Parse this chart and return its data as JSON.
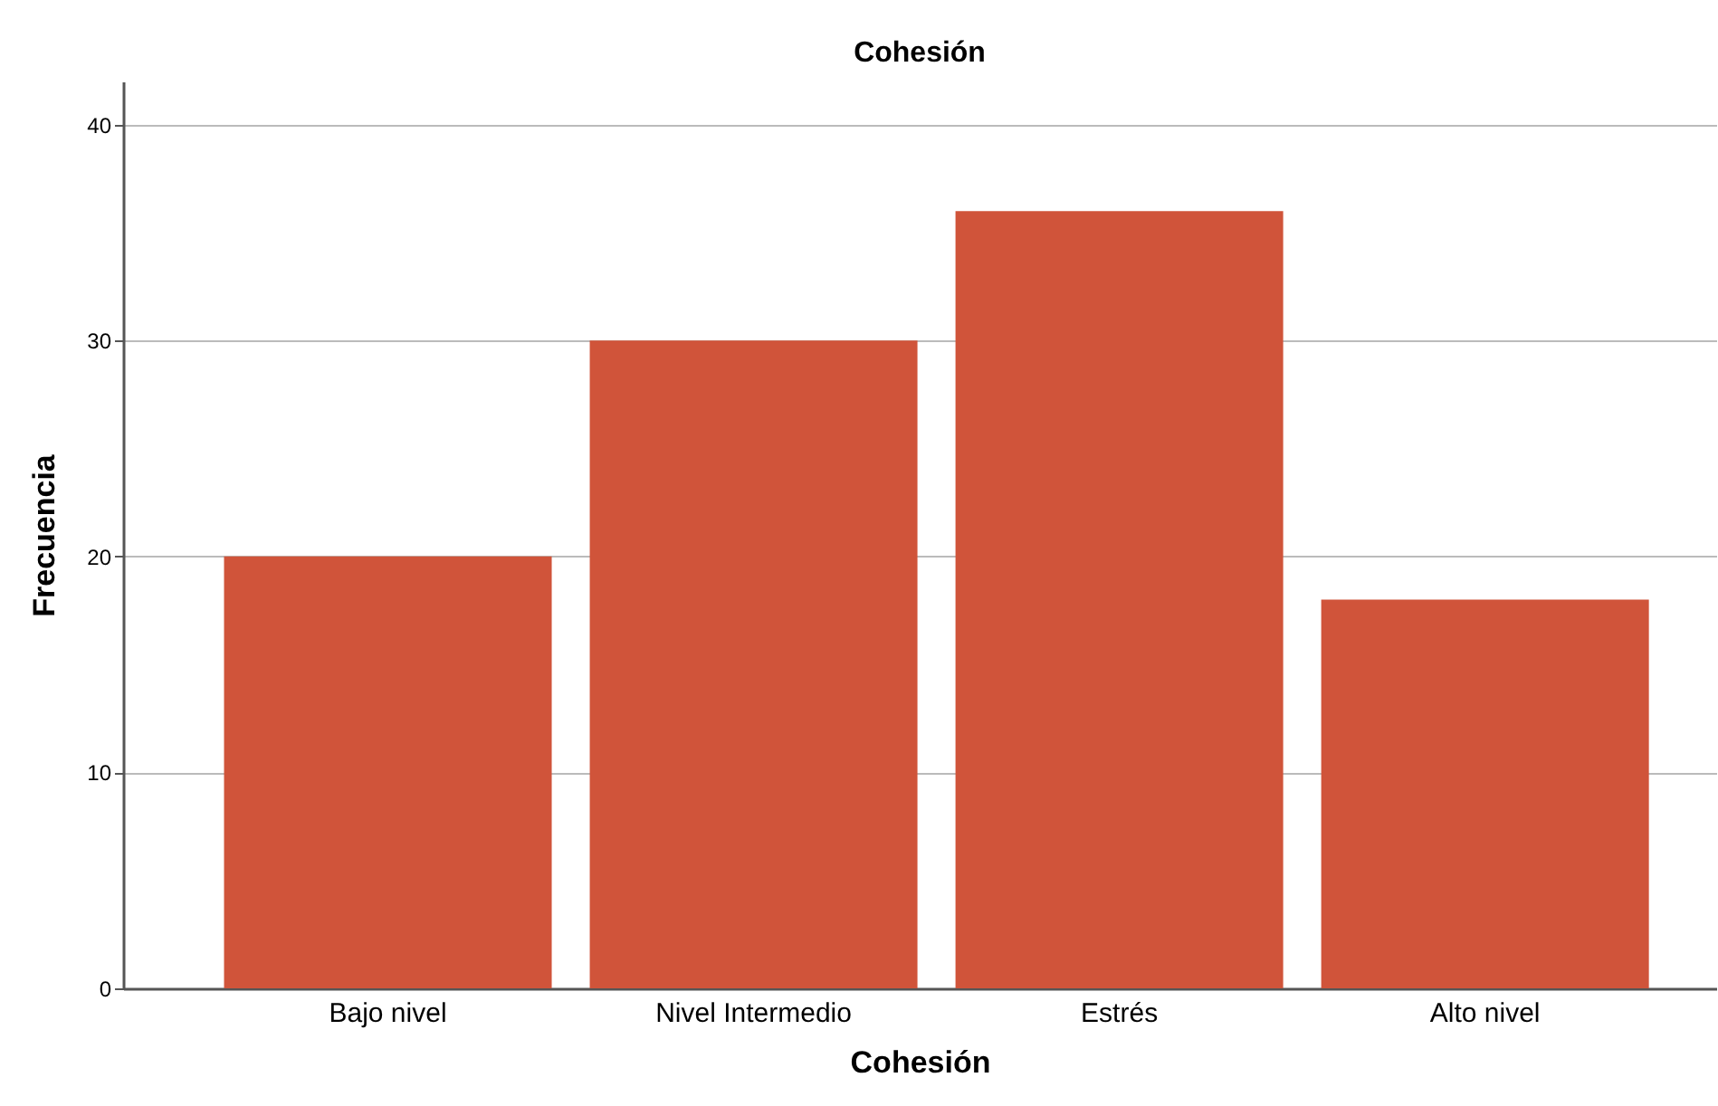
{
  "chart_data": {
    "type": "bar",
    "title": "Cohesión",
    "xlabel": "Cohesión",
    "ylabel": "Frecuencia",
    "categories": [
      "Bajo nivel",
      "Nivel Intermedio",
      "Estrés",
      "Alto nivel"
    ],
    "values": [
      20,
      30,
      36,
      18
    ],
    "color": "#d0543a",
    "ylim": [
      0,
      42
    ],
    "yticks": [
      0,
      10,
      20,
      30,
      40
    ],
    "grid": "y"
  }
}
